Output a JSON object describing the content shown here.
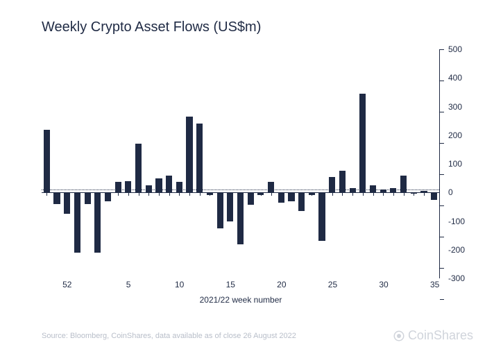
{
  "title": "Weekly Crypto Asset Flows (US$m)",
  "source": "Source: Bloomberg, CoinShares, data available as of close 26 August 2022",
  "brand": "CoinShares",
  "x_axis_title": "2021/22 week number",
  "chart": {
    "type": "bar",
    "bar_color": "#1f2a44",
    "axis_color": "#1f2a44",
    "background_color": "#ffffff",
    "title_fontsize": 20,
    "label_fontsize": 12,
    "ylim": [
      -300,
      500
    ],
    "ytick_step": 100,
    "y_ticks": [
      -300,
      -200,
      -100,
      0,
      100,
      200,
      300,
      400,
      500
    ],
    "x_ticks": [
      {
        "label": "52",
        "index": 2
      },
      {
        "label": "5",
        "index": 8
      },
      {
        "label": "10",
        "index": 13
      },
      {
        "label": "15",
        "index": 18
      },
      {
        "label": "20",
        "index": 23
      },
      {
        "label": "25",
        "index": 28
      },
      {
        "label": "30",
        "index": 33
      },
      {
        "label": "35",
        "index": 38
      }
    ],
    "bar_count": 39,
    "values": [
      220,
      -40,
      -75,
      -210,
      -40,
      -210,
      -30,
      38,
      40,
      170,
      25,
      48,
      60,
      38,
      265,
      240,
      -8,
      -125,
      -100,
      -180,
      -42,
      -8,
      38,
      -35,
      -32,
      -65,
      -8,
      -170,
      55,
      75,
      15,
      345,
      25,
      10,
      15,
      58,
      -5,
      5,
      -25
    ]
  }
}
